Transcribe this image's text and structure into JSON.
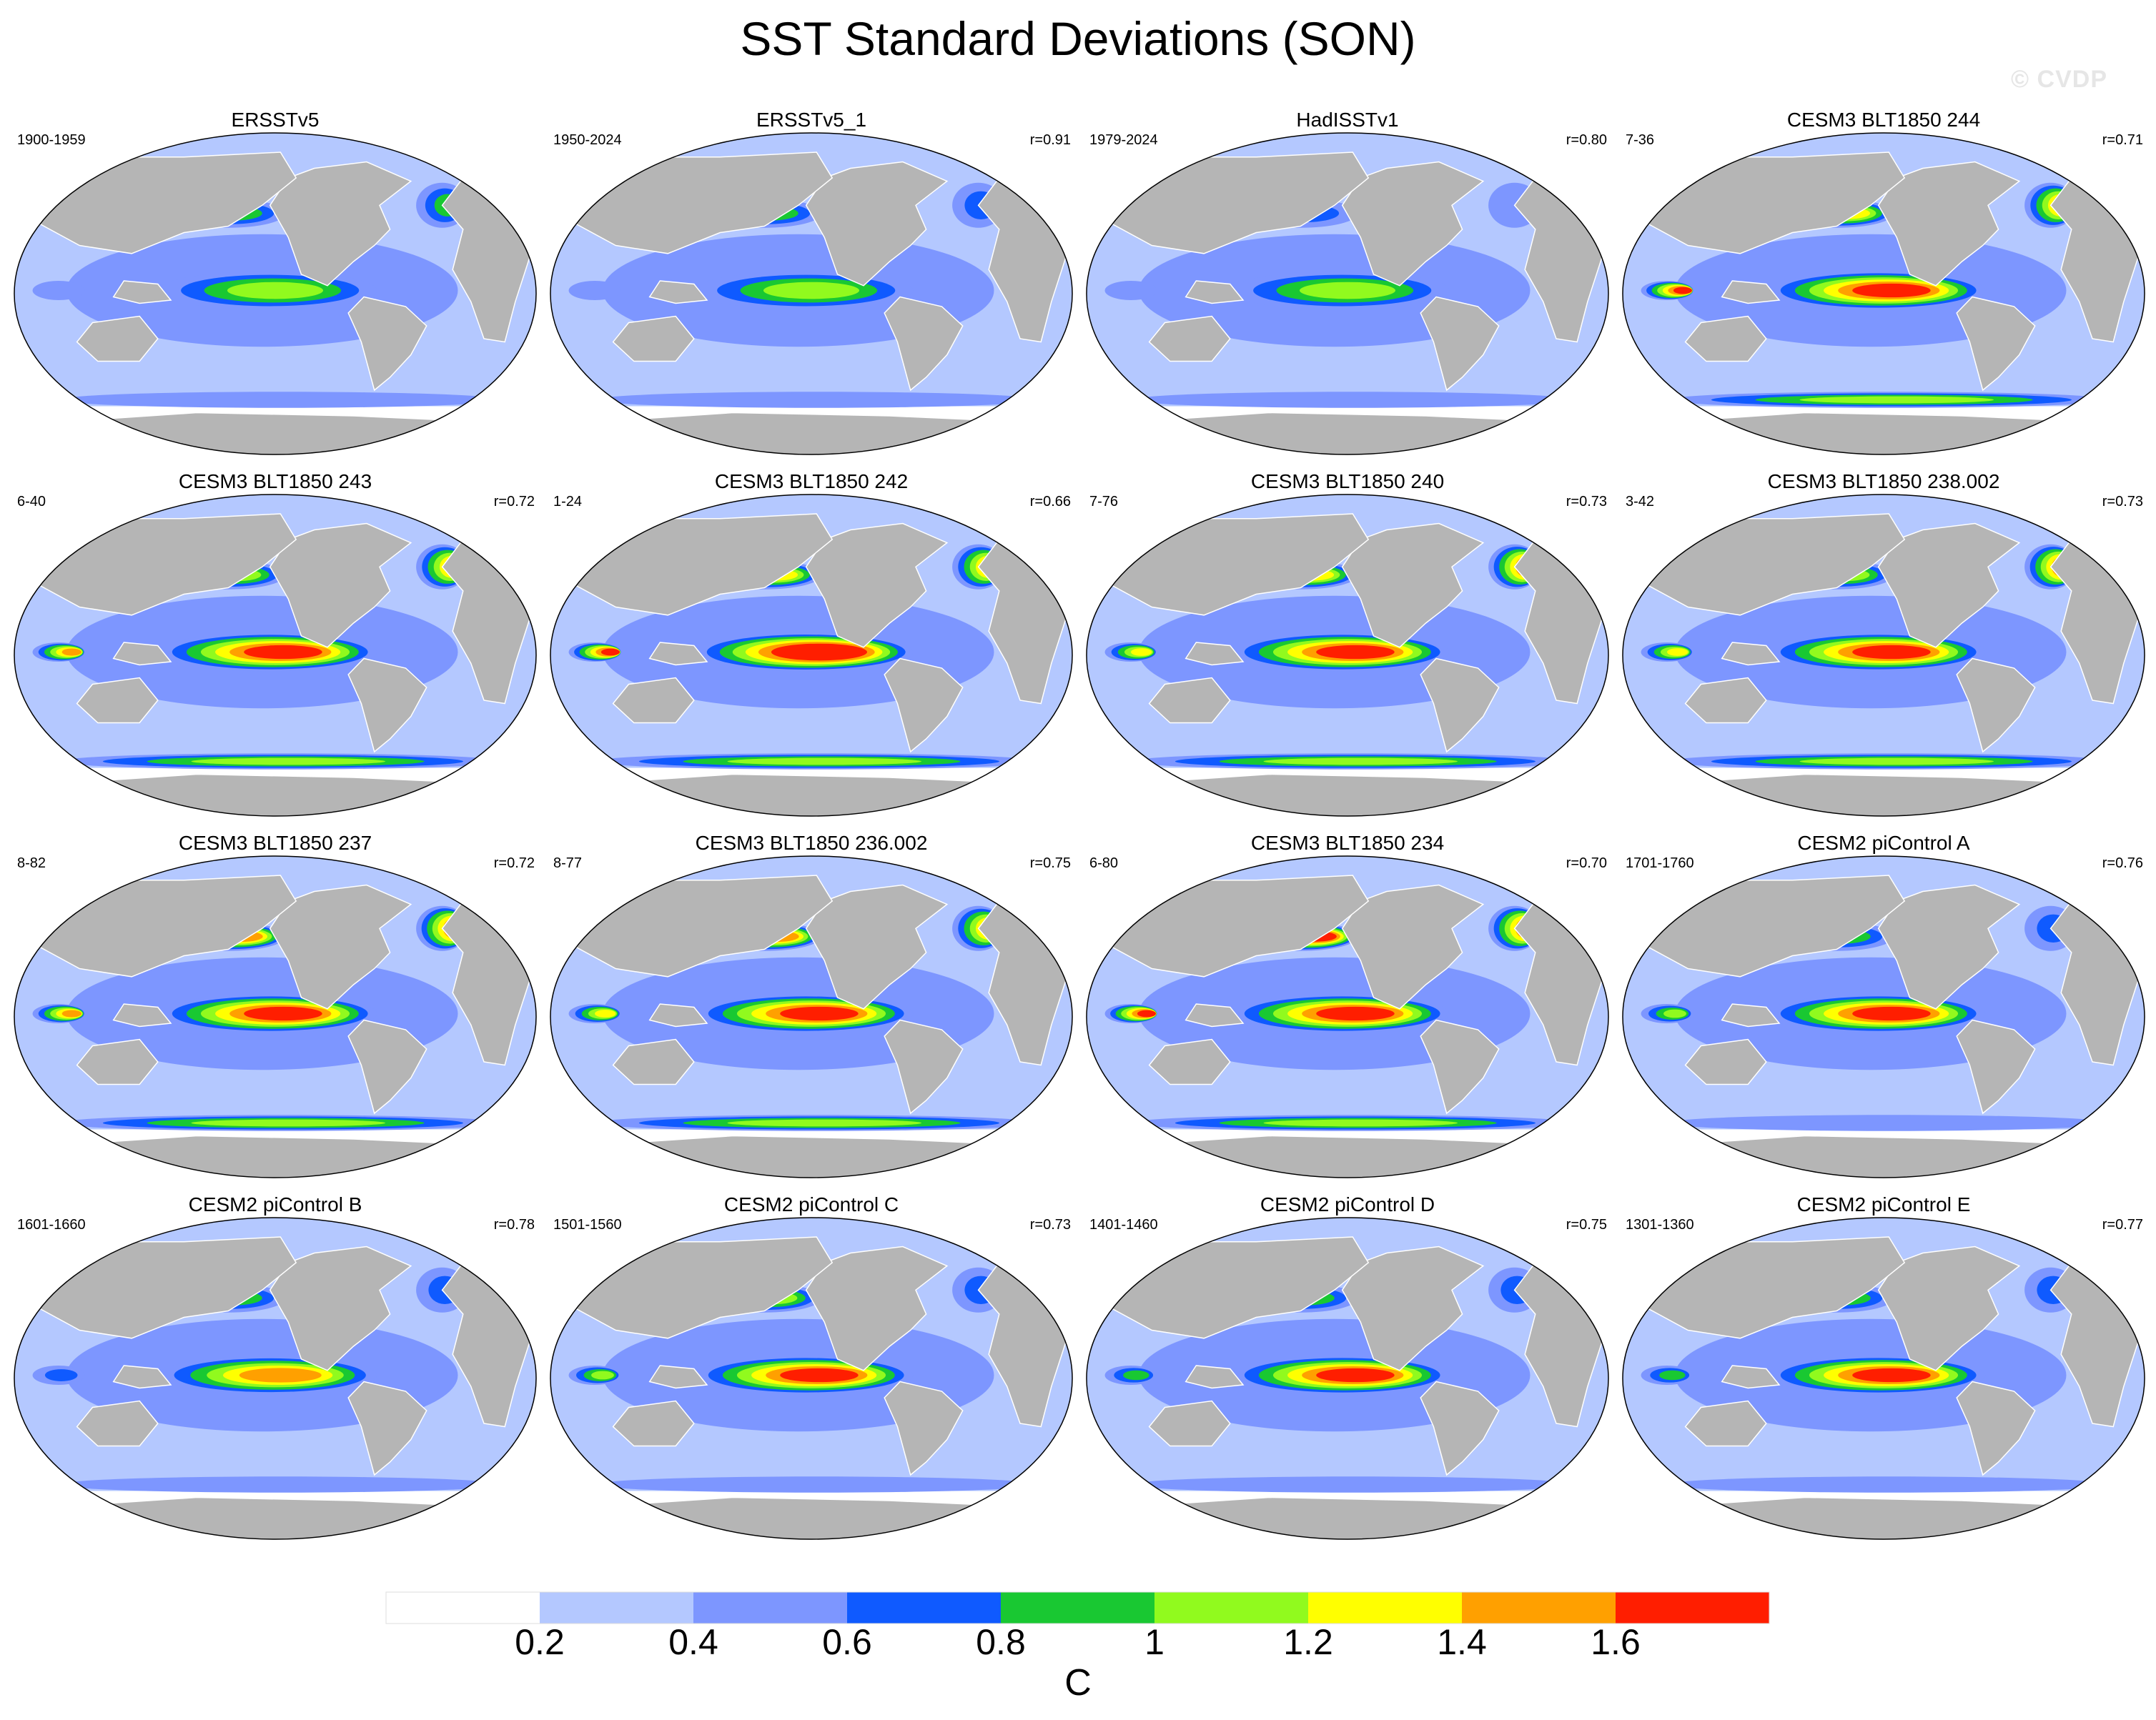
{
  "title": "SST Standard Deviations (SON)",
  "watermark": "© CVDP",
  "colors": {
    "land": "#b5b5b5",
    "levels": [
      "#ffffff",
      "#b4c8ff",
      "#7d96ff",
      "#0f5aff",
      "#19c832",
      "#91fa1e",
      "#ffff00",
      "#ffa000",
      "#ff1e00"
    ]
  },
  "colorbar": {
    "ticks": [
      "0.2",
      "0.4",
      "0.6",
      "0.8",
      "1",
      "1.2",
      "1.4",
      "1.6"
    ],
    "units": "C"
  },
  "panels": [
    {
      "name": "ERSSTv5",
      "period": "1900-1959",
      "r": "",
      "nino": 1.1,
      "npac": 0.95,
      "natl": 0.8,
      "indo": 0.5,
      "so": 0.5
    },
    {
      "name": "ERSSTv5_1",
      "period": "1950-2024",
      "r": "r=0.91",
      "nino": 1.1,
      "npac": 0.85,
      "natl": 0.7,
      "indo": 0.45,
      "so": 0.5
    },
    {
      "name": "HadISSTv1",
      "period": "1979-2024",
      "r": "r=0.80",
      "nino": 1.15,
      "npac": 0.7,
      "natl": 0.6,
      "indo": 0.4,
      "so": 0.4
    },
    {
      "name": "CESM3 BLT1850 244",
      "period": "7-36",
      "r": "r=0.71",
      "nino": 1.75,
      "npac": 1.35,
      "natl": 1.45,
      "indo": 1.65,
      "so": 1.1
    },
    {
      "name": "CESM3 BLT1850 243",
      "period": "6-40",
      "r": "r=0.72",
      "nino": 1.7,
      "npac": 1.2,
      "natl": 1.5,
      "indo": 1.5,
      "so": 1.1
    },
    {
      "name": "CESM3 BLT1850 242",
      "period": "1-24",
      "r": "r=0.66",
      "nino": 1.8,
      "npac": 1.25,
      "natl": 1.5,
      "indo": 1.7,
      "so": 1.1
    },
    {
      "name": "CESM3 BLT1850 240",
      "period": "7-76",
      "r": "r=0.73",
      "nino": 1.7,
      "npac": 1.25,
      "natl": 1.6,
      "indo": 1.4,
      "so": 1.1
    },
    {
      "name": "CESM3 BLT1850 238.002",
      "period": "3-42",
      "r": "r=0.73",
      "nino": 1.65,
      "npac": 1.2,
      "natl": 1.6,
      "indo": 1.3,
      "so": 1.1
    },
    {
      "name": "CESM3 BLT1850 237",
      "period": "8-82",
      "r": "r=0.72",
      "nino": 1.65,
      "npac": 1.55,
      "natl": 1.6,
      "indo": 1.5,
      "so": 1.1
    },
    {
      "name": "CESM3 BLT1850 236.002",
      "period": "8-77",
      "r": "r=0.75",
      "nino": 1.65,
      "npac": 1.5,
      "natl": 1.55,
      "indo": 1.3,
      "so": 1.1
    },
    {
      "name": "CESM3 BLT1850 234",
      "period": "6-80",
      "r": "r=0.70",
      "nino": 1.65,
      "npac": 1.6,
      "natl": 1.6,
      "indo": 1.6,
      "so": 1.1
    },
    {
      "name": "CESM2 piControl A",
      "period": "1701-1760",
      "r": "r=0.76",
      "nino": 1.65,
      "npac": 0.9,
      "natl": 0.7,
      "indo": 1.0,
      "so": 0.4
    },
    {
      "name": "CESM2 piControl B",
      "period": "1601-1660",
      "r": "r=0.78",
      "nino": 1.5,
      "npac": 0.9,
      "natl": 0.7,
      "indo": 0.7,
      "so": 0.4
    },
    {
      "name": "CESM2 piControl C",
      "period": "1501-1560",
      "r": "r=0.73",
      "nino": 1.65,
      "npac": 1.0,
      "natl": 0.75,
      "indo": 1.0,
      "so": 0.4
    },
    {
      "name": "CESM2 piControl D",
      "period": "1401-1460",
      "r": "r=0.75",
      "nino": 1.65,
      "npac": 0.9,
      "natl": 0.7,
      "indo": 0.8,
      "so": 0.4
    },
    {
      "name": "CESM2 piControl E",
      "period": "1301-1360",
      "r": "r=0.77",
      "nino": 1.6,
      "npac": 0.9,
      "natl": 0.7,
      "indo": 0.9,
      "so": 0.4
    }
  ]
}
